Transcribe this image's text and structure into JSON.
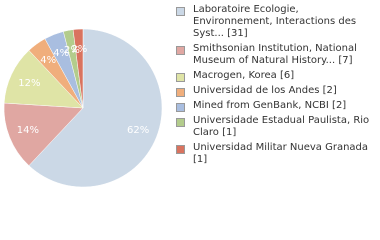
{
  "chart_data": {
    "type": "pie",
    "series": [
      {
        "name": "Laboratoire Ecologie, Environnement, Interactions des Syst... [31]",
        "color": "#cbd8e6",
        "values": [
          62
        ],
        "value_labels": [
          "62%"
        ]
      },
      {
        "name": "Smithsonian Institution, National Museum of Natural History... [7]",
        "color": "#e0a7a2",
        "values": [
          14
        ],
        "value_labels": [
          "14%"
        ]
      },
      {
        "name": "Macrogen, Korea [6]",
        "color": "#dfe4a6",
        "values": [
          12
        ],
        "value_labels": [
          "12%"
        ]
      },
      {
        "name": "Universidad de los Andes [2]",
        "color": "#f0ae7c",
        "values": [
          4
        ],
        "value_labels": [
          "4%"
        ]
      },
      {
        "name": "Mined from GenBank, NCBI [2]",
        "color": "#a9bee0",
        "values": [
          4
        ],
        "value_labels": [
          "4%"
        ]
      },
      {
        "name": "Universidade Estadual Paulista, Rio Claro [1]",
        "color": "#b3cc8c",
        "values": [
          2
        ],
        "value_labels": [
          "2%"
        ]
      },
      {
        "name": "Universidad Militar Nueva Granada [1]",
        "color": "#d9735f",
        "values": [
          2
        ],
        "value_labels": [
          "2%"
        ]
      }
    ]
  }
}
